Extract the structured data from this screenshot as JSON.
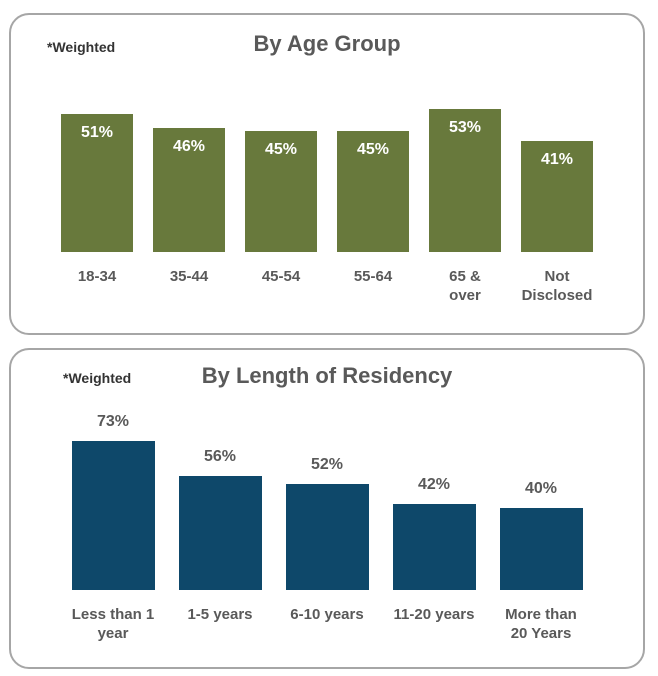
{
  "chart_data": [
    {
      "type": "bar",
      "title": "By Age Group",
      "note": "*Weighted",
      "categories": [
        "18-34",
        "35-44",
        "45-54",
        "55-64",
        "65 &\nover",
        "Not\nDisclosed"
      ],
      "values": [
        51,
        46,
        45,
        45,
        53,
        41
      ],
      "value_suffix": "%",
      "bar_color": "#68793c",
      "value_label_position": "inside-top",
      "value_label_color": "#ffffff",
      "category_label_color": "#595959",
      "axes": "hidden",
      "grid": false,
      "legend": false
    },
    {
      "type": "bar",
      "title": "By Length of Residency",
      "note": "*Weighted",
      "categories": [
        "Less than 1\nyear",
        "1-5 years",
        "6-10 years",
        "11-20 years",
        "More than\n20 Years"
      ],
      "values": [
        73,
        56,
        52,
        42,
        40
      ],
      "value_suffix": "%",
      "bar_color": "#0e486a",
      "value_label_position": "above",
      "value_label_color": "#595959",
      "category_label_color": "#595959",
      "axes": "hidden",
      "grid": false,
      "legend": false
    }
  ]
}
